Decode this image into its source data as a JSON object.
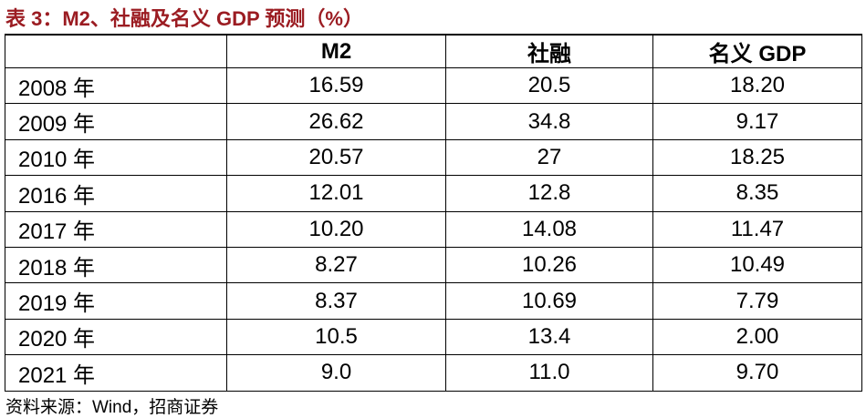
{
  "title": "表 3：M2、社融及名义 GDP 预测（%）",
  "table": {
    "columns": [
      "M2",
      "社融",
      "名义 GDP"
    ],
    "rows": [
      [
        "2008 年",
        "16.59",
        "20.5",
        "18.20"
      ],
      [
        "2009 年",
        "26.62",
        "34.8",
        "9.17"
      ],
      [
        "2010 年",
        "20.57",
        "27",
        "18.25"
      ],
      [
        "2016 年",
        "12.01",
        "12.8",
        "8.35"
      ],
      [
        "2017 年",
        "10.20",
        "14.08",
        "11.47"
      ],
      [
        "2018 年",
        "8.27",
        "10.26",
        "10.49"
      ],
      [
        "2019 年",
        "8.37",
        "10.69",
        "7.79"
      ],
      [
        "2020 年",
        "10.5",
        "13.4",
        "2.00"
      ],
      [
        "2021 年",
        "9.0",
        "11.0",
        "9.70"
      ]
    ]
  },
  "source": "资料来源：Wind，招商证券"
}
